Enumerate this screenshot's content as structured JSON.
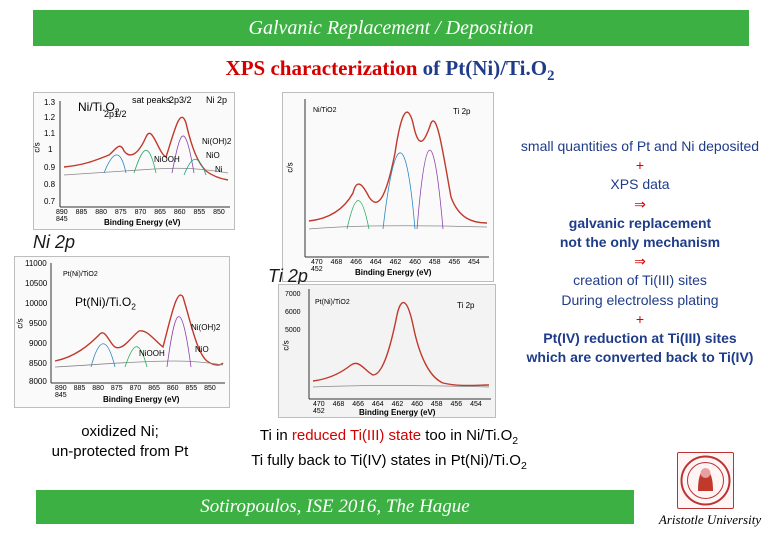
{
  "header": {
    "title": "Galvanic Replacement / Deposition"
  },
  "subtitle": {
    "prefix": "XPS characterization",
    "of": "of",
    "formula_main": "Pt(Ni)/Ti.O",
    "formula_sub": "2"
  },
  "plots": {
    "ni_top": {
      "sample_main": "Ni/Ti.O",
      "sample_sub": "2",
      "peak_labels": [
        "Ni",
        "2p",
        "sat peaks",
        "2p1/2",
        "2p3/2",
        "Ni(OH)2",
        "NiOOH",
        "NiO",
        "Ni"
      ],
      "y_ticks": [
        "1.3",
        "1.2",
        "1.1",
        "1",
        "0.9",
        "0.8",
        "0.7"
      ],
      "x_ticks": [
        "890",
        "885",
        "880",
        "875",
        "870",
        "865",
        "860",
        "855",
        "850",
        "845"
      ],
      "y_unit": "c/s",
      "x_axis": "Binding Energy (eV)"
    },
    "ni_bottom": {
      "sample_main": "Pt(Ni)/Ti.O",
      "sample_sub": "2",
      "small_label": "Pt(Ni)/TiO2",
      "peak_labels": [
        "Ni(OH)2",
        "NiOOH",
        "NiO"
      ],
      "y_ticks": [
        "11000",
        "10500",
        "10000",
        "9500",
        "9000",
        "8500",
        "8000"
      ],
      "x_ticks": [
        "890",
        "885",
        "880",
        "875",
        "870",
        "865",
        "860",
        "855",
        "850",
        "845"
      ],
      "y_unit": "c/s",
      "x_axis": "Binding Energy (eV)"
    },
    "ti_top": {
      "sample_label": "Ni/TiO2",
      "corner_label": "Ti 2p",
      "x_ticks": [
        "470",
        "468",
        "466",
        "464",
        "462",
        "460",
        "458",
        "456",
        "454",
        "452"
      ],
      "y_unit": "c/s",
      "x_axis": "Binding Energy (eV)"
    },
    "ti_bottom": {
      "sample_label": "Pt(Ni)/TiO2",
      "corner_label": "Ti 2p",
      "y_ticks": [
        "7000",
        "6000",
        "5000"
      ],
      "x_ticks": [
        "470",
        "468",
        "466",
        "464",
        "462",
        "460",
        "458",
        "456",
        "454",
        "452"
      ],
      "y_unit": "c/s",
      "x_axis": "Binding Energy (eV)"
    }
  },
  "labels": {
    "ni_2p": "Ni 2p",
    "ti_2p": "Ti 2p"
  },
  "right_text": {
    "line1": "small quantities of Pt and Ni deposited",
    "plus1": "+",
    "line2": "XPS data",
    "implies1": "⇒",
    "line3": "galvanic replacement",
    "line4": "not the only mechanism",
    "implies2": "⇒",
    "line5": "creation of Ti(III) sites",
    "line6": "During electroless plating",
    "plus2": "+",
    "line7": "Pt(IV) reduction at Ti(III) sites",
    "line8": "which are converted back to Ti(IV)"
  },
  "captions": {
    "left_line1": "oxidized Ni;",
    "left_line2": "un-protected from Pt",
    "mid_a": "Ti in",
    "mid_red": "reduced Ti(III) state",
    "mid_b": "too in Ni/Ti.O",
    "mid_b_sub": "2",
    "mid_line2": "Ti fully back to Ti(IV) states in Pt(Ni)/Ti.O",
    "mid_line2_sub": "2"
  },
  "footer": {
    "text": "Sotiropoulos, ISE 2016, The Hague",
    "university": "Aristotle University"
  },
  "colors": {
    "band": "#3cb043",
    "accent_red": "#d40000",
    "accent_blue": "#1f3c8a"
  }
}
